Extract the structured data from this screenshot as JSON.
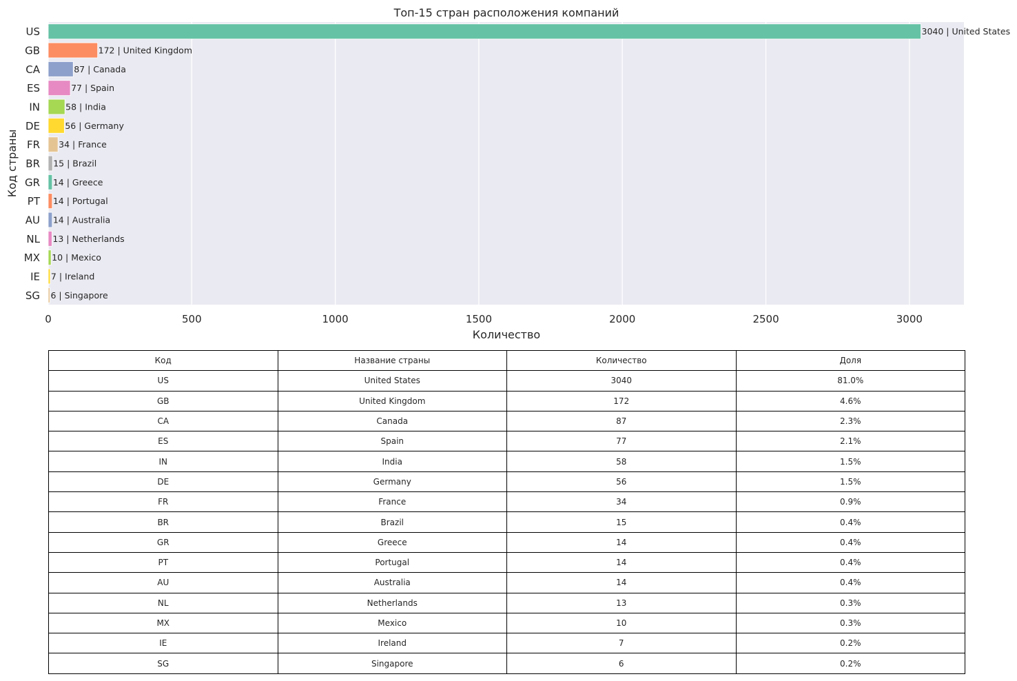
{
  "chart_data": {
    "type": "bar",
    "orientation": "horizontal",
    "title": "Топ-15 стран расположения компаний",
    "xlabel": "Количество",
    "ylabel": "Код страны",
    "xlim": [
      0,
      3190
    ],
    "xticks": [
      0,
      500,
      1000,
      1500,
      2000,
      2500,
      3000
    ],
    "grid": true,
    "categories": [
      "US",
      "GB",
      "CA",
      "ES",
      "IN",
      "DE",
      "FR",
      "BR",
      "GR",
      "PT",
      "AU",
      "NL",
      "MX",
      "IE",
      "SG"
    ],
    "values": [
      3040,
      172,
      87,
      77,
      58,
      56,
      34,
      15,
      14,
      14,
      14,
      13,
      10,
      7,
      6
    ],
    "bar_labels": [
      "3040 | United States",
      "172 | United Kingdom",
      "87 | Canada",
      "77 | Spain",
      "58 | India",
      "56 | Germany",
      "34 | France",
      "15 | Brazil",
      "14 | Greece",
      "14 | Portugal",
      "14 | Australia",
      "13 | Netherlands",
      "10 | Mexico",
      "7 | Ireland",
      "6 | Singapore"
    ],
    "colors": [
      "#66c2a5",
      "#fc8d62",
      "#8da0cb",
      "#e78ac3",
      "#a6d854",
      "#ffd92f",
      "#e5c494",
      "#b3b3b3",
      "#66c2a5",
      "#fc8d62",
      "#8da0cb",
      "#e78ac3",
      "#a6d854",
      "#ffd92f",
      "#e5c494"
    ],
    "background": "#eaeaf2"
  },
  "table": {
    "headers": [
      "Код",
      "Название страны",
      "Количество",
      "Доля"
    ],
    "rows": [
      [
        "US",
        "United States",
        "3040",
        "81.0%"
      ],
      [
        "GB",
        "United Kingdom",
        "172",
        "4.6%"
      ],
      [
        "CA",
        "Canada",
        "87",
        "2.3%"
      ],
      [
        "ES",
        "Spain",
        "77",
        "2.1%"
      ],
      [
        "IN",
        "India",
        "58",
        "1.5%"
      ],
      [
        "DE",
        "Germany",
        "56",
        "1.5%"
      ],
      [
        "FR",
        "France",
        "34",
        "0.9%"
      ],
      [
        "BR",
        "Brazil",
        "15",
        "0.4%"
      ],
      [
        "GR",
        "Greece",
        "14",
        "0.4%"
      ],
      [
        "PT",
        "Portugal",
        "14",
        "0.4%"
      ],
      [
        "AU",
        "Australia",
        "14",
        "0.4%"
      ],
      [
        "NL",
        "Netherlands",
        "13",
        "0.3%"
      ],
      [
        "MX",
        "Mexico",
        "10",
        "0.3%"
      ],
      [
        "IE",
        "Ireland",
        "7",
        "0.2%"
      ],
      [
        "SG",
        "Singapore",
        "6",
        "0.2%"
      ]
    ]
  }
}
